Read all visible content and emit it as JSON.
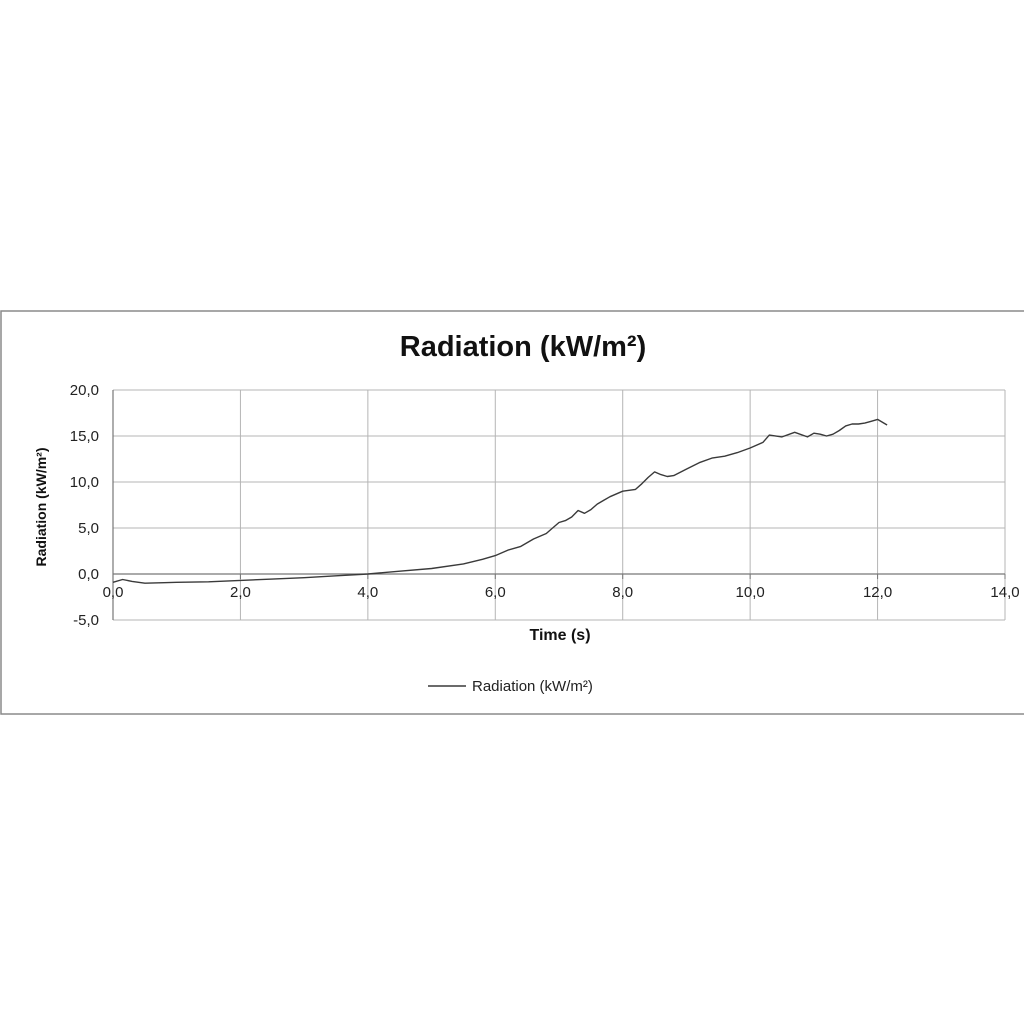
{
  "chart_data": {
    "type": "line",
    "title": "Radiation (kW/m²)",
    "xlabel": "Time (s)",
    "ylabel": "Radiation (kW/m²)",
    "xlim": [
      0,
      14
    ],
    "ylim": [
      -5,
      20
    ],
    "x_ticks": [
      "0,0",
      "2,0",
      "4,0",
      "6,0",
      "8,0",
      "10,0",
      "12,0",
      "14,0"
    ],
    "y_ticks": [
      "-5,0",
      "0,0",
      "5,0",
      "10,0",
      "15,0",
      "20,0"
    ],
    "grid": true,
    "legend_position": "bottom",
    "line_color": "#3a3a3a",
    "series": [
      {
        "name": "Radiation (kW/m²)",
        "x": [
          0.0,
          0.15,
          0.3,
          0.5,
          0.8,
          1.0,
          1.5,
          2.0,
          2.5,
          3.0,
          3.5,
          4.0,
          4.5,
          5.0,
          5.5,
          5.8,
          6.0,
          6.2,
          6.4,
          6.6,
          6.8,
          6.9,
          7.0,
          7.1,
          7.2,
          7.3,
          7.4,
          7.5,
          7.6,
          7.7,
          7.8,
          8.0,
          8.2,
          8.3,
          8.4,
          8.5,
          8.6,
          8.7,
          8.8,
          9.0,
          9.2,
          9.4,
          9.6,
          9.8,
          10.0,
          10.2,
          10.3,
          10.5,
          10.7,
          10.9,
          11.0,
          11.1,
          11.2,
          11.3,
          11.4,
          11.5,
          11.6,
          11.7,
          11.8,
          11.9,
          12.0,
          12.1,
          12.15
        ],
        "y": [
          -0.9,
          -0.6,
          -0.8,
          -1.0,
          -0.95,
          -0.9,
          -0.85,
          -0.7,
          -0.55,
          -0.4,
          -0.2,
          0.0,
          0.3,
          0.6,
          1.1,
          1.6,
          2.0,
          2.6,
          3.0,
          3.8,
          4.4,
          5.0,
          5.6,
          5.8,
          6.2,
          6.9,
          6.6,
          7.0,
          7.6,
          8.0,
          8.4,
          9.0,
          9.2,
          9.8,
          10.5,
          11.1,
          10.8,
          10.6,
          10.7,
          11.4,
          12.1,
          12.6,
          12.8,
          13.2,
          13.7,
          14.3,
          15.1,
          14.9,
          15.4,
          14.9,
          15.3,
          15.2,
          15.0,
          15.2,
          15.6,
          16.1,
          16.3,
          16.3,
          16.4,
          16.6,
          16.8,
          16.4,
          16.2
        ]
      }
    ]
  }
}
